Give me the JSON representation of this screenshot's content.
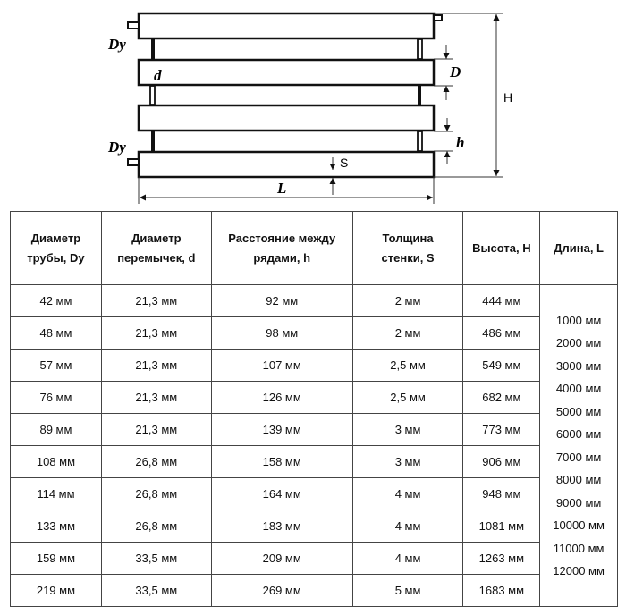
{
  "diagram": {
    "labels": {
      "dy_top": "Dy",
      "dy_bottom": "Dy",
      "d": "d",
      "D": "D",
      "H": "H",
      "h": "h",
      "S": "S",
      "L": "L"
    }
  },
  "table": {
    "headers": [
      "Диаметр трубы, Dy",
      "Диаметр перемычек, d",
      "Расстояние между рядами, h",
      "Толщина стенки, S",
      "Высота, H",
      "Длина, L"
    ],
    "rows": [
      [
        "42 мм",
        "21,3 мм",
        "92 мм",
        "2 мм",
        "444 мм"
      ],
      [
        "48 мм",
        "21,3 мм",
        "98 мм",
        "2 мм",
        "486 мм"
      ],
      [
        "57 мм",
        "21,3 мм",
        "107 мм",
        "2,5 мм",
        "549 мм"
      ],
      [
        "76 мм",
        "21,3 мм",
        "126 мм",
        "2,5 мм",
        "682 мм"
      ],
      [
        "89 мм",
        "21,3 мм",
        "139 мм",
        "3 мм",
        "773 мм"
      ],
      [
        "108 мм",
        "26,8 мм",
        "158 мм",
        "3 мм",
        "906 мм"
      ],
      [
        "114 мм",
        "26,8 мм",
        "164 мм",
        "4 мм",
        "948 мм"
      ],
      [
        "133 мм",
        "26,8 мм",
        "183 мм",
        "4 мм",
        "1081 мм"
      ],
      [
        "159 мм",
        "33,5 мм",
        "209 мм",
        "4 мм",
        "1263 мм"
      ],
      [
        "219 мм",
        "33,5 мм",
        "269 мм",
        "5 мм",
        "1683 мм"
      ]
    ],
    "lengths": [
      "1000 мм",
      "2000 мм",
      "3000 мм",
      "4000 мм",
      "5000 мм",
      "6000 мм",
      "7000 мм",
      "8000 мм",
      "9000 мм",
      "10000 мм",
      "11000 мм",
      "12000 мм"
    ]
  }
}
